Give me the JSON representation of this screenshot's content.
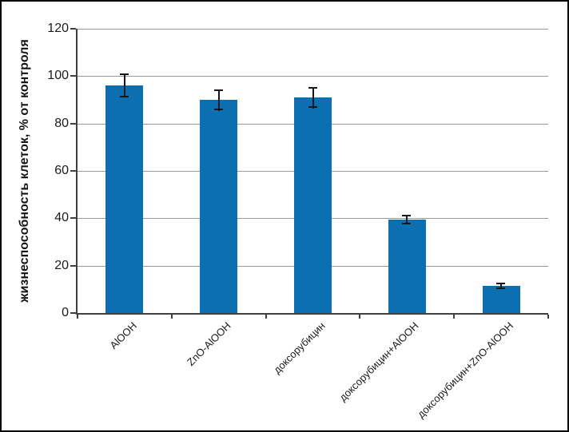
{
  "chart_data": {
    "type": "bar",
    "title": "",
    "xlabel": "",
    "ylabel": "жизнеспособность клеток, % от контроля",
    "categories": [
      "AlOOH",
      "ZnO-AlOOH",
      "доксорубицин",
      "доксорубицин+AlOOH",
      "доксорубицин+ZnO-AlOOH"
    ],
    "values": [
      96,
      90,
      91,
      39.5,
      11.5
    ],
    "errors": [
      5,
      4.5,
      4.5,
      2,
      1.3
    ],
    "ylim": [
      0,
      120
    ],
    "yticks": [
      0,
      20,
      40,
      60,
      80,
      100,
      120
    ],
    "grid": true,
    "legend_position": "none",
    "colors": {
      "bar": "#0b6fb2",
      "gridline": "#999999",
      "axis": "#404040",
      "error_bar": "#14181d",
      "text": "#1a1a1a",
      "frame_border": "#000000",
      "background": "#ffffff"
    }
  }
}
